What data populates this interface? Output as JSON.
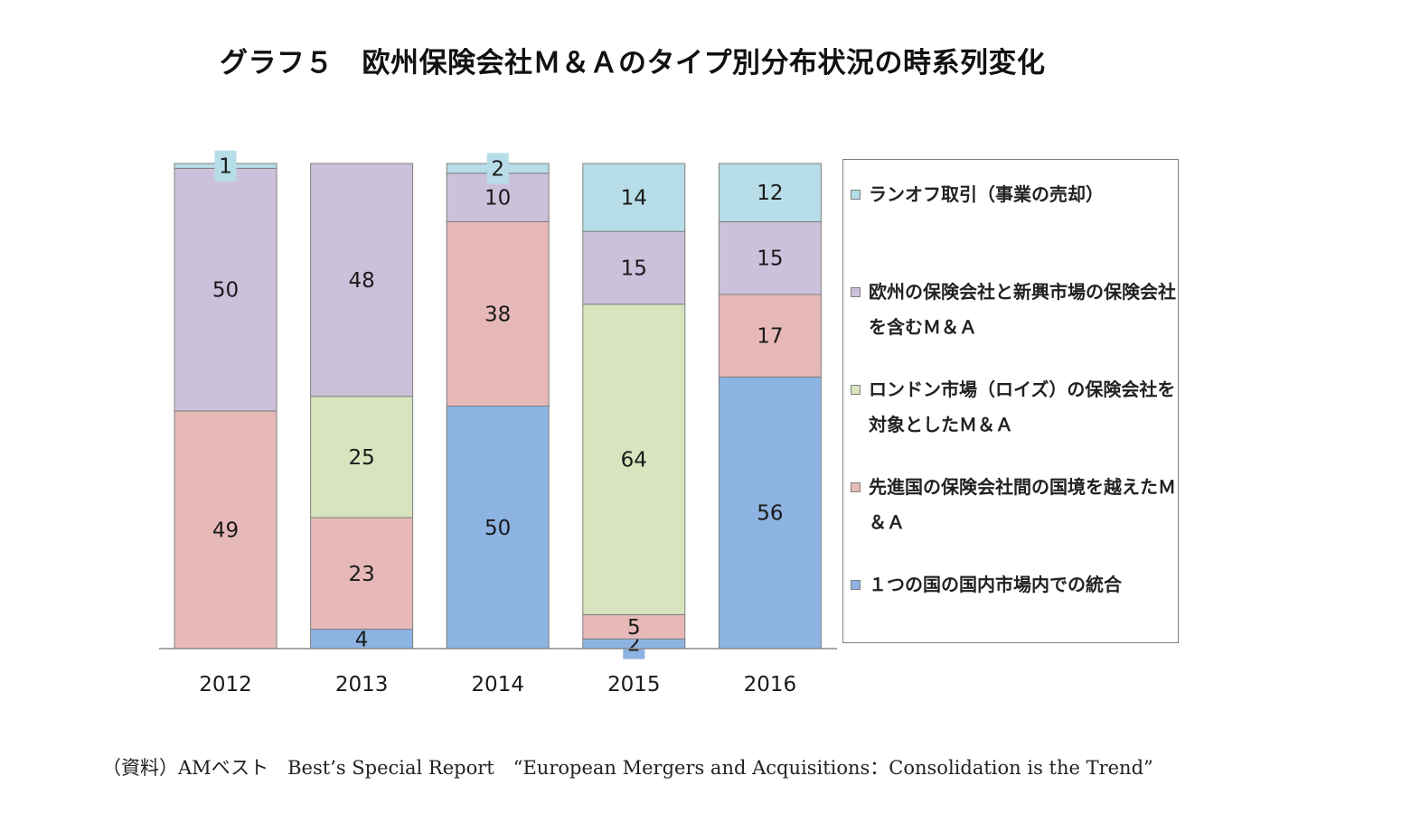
{
  "title": "グラフ５　欧州保険会社Ｍ＆Ａのタイプ別分布状況の時系列変化",
  "source": "（資料）AMベスト　Best’s Special Report　“European Mergers and Acquisitions：Consolidation is the Trend”",
  "chart_data": {
    "type": "bar",
    "stacked": true,
    "categories": [
      "2012",
      "2013",
      "2014",
      "2015",
      "2016"
    ],
    "series": [
      {
        "name": "１つの国の国内市場内での統合",
        "color": "#8db3e2",
        "values": [
          0,
          4,
          50,
          2,
          56
        ]
      },
      {
        "name": "先進国の保険会社間の国境を越えたＭ＆Ａ",
        "color": "#e6b9b8",
        "values": [
          49,
          23,
          38,
          5,
          17
        ]
      },
      {
        "name": "ロンドン市場（ロイズ）の保険会社を対象としたＭ＆Ａ",
        "color": "#d7e4bd",
        "values": [
          0,
          25,
          0,
          64,
          0
        ]
      },
      {
        "name": "欧州の保険会社と新興市場の保険会社を含むＭ＆Ａ",
        "color": "#ccc1da",
        "values": [
          50,
          48,
          10,
          15,
          15
        ]
      },
      {
        "name": "ランオフ取引（事業の売却）",
        "color": "#b7dde8",
        "values": [
          1,
          0,
          2,
          14,
          12
        ]
      }
    ],
    "ylim": [
      0,
      100
    ],
    "legend_position": "right",
    "legend_order": "top series first",
    "grid": false
  }
}
